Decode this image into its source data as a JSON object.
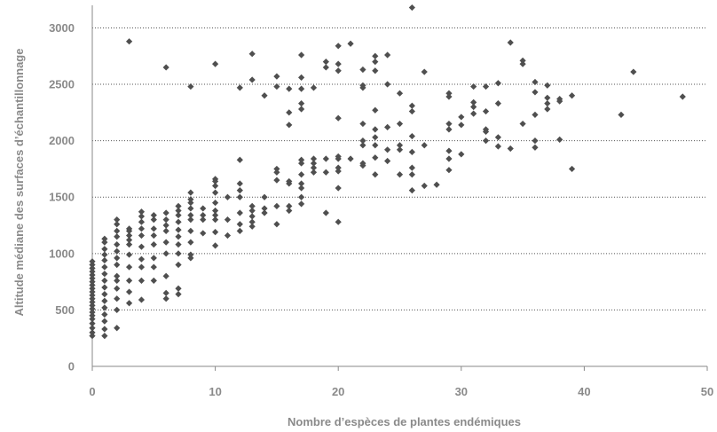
{
  "chart_data": {
    "type": "scatter",
    "xlabel": "Nombre d’espèces de plantes endémiques",
    "ylabel": "Altitude médiane des surfaces d’échantillonnage",
    "xlim": [
      0,
      50
    ],
    "ylim": [
      0,
      3200
    ],
    "xticks": [
      0,
      10,
      20,
      30,
      40,
      50
    ],
    "yticks": [
      0,
      500,
      1000,
      1500,
      2000,
      2500,
      3000
    ],
    "grid": "horizontal dotted",
    "marker_color": "#4f4f4f",
    "points": [
      [
        0,
        270
      ],
      [
        0,
        300
      ],
      [
        0,
        340
      ],
      [
        0,
        380
      ],
      [
        0,
        420
      ],
      [
        0,
        450
      ],
      [
        0,
        480
      ],
      [
        0,
        510
      ],
      [
        0,
        540
      ],
      [
        0,
        570
      ],
      [
        0,
        600
      ],
      [
        0,
        630
      ],
      [
        0,
        660
      ],
      [
        0,
        690
      ],
      [
        0,
        720
      ],
      [
        0,
        750
      ],
      [
        0,
        780
      ],
      [
        0,
        810
      ],
      [
        0,
        840
      ],
      [
        0,
        870
      ],
      [
        0,
        900
      ],
      [
        0,
        930
      ],
      [
        1,
        270
      ],
      [
        1,
        330
      ],
      [
        1,
        400
      ],
      [
        1,
        460
      ],
      [
        1,
        520
      ],
      [
        1,
        580
      ],
      [
        1,
        640
      ],
      [
        1,
        700
      ],
      [
        1,
        760
      ],
      [
        1,
        820
      ],
      [
        1,
        880
      ],
      [
        1,
        940
      ],
      [
        1,
        990
      ],
      [
        1,
        1040
      ],
      [
        1,
        1100
      ],
      [
        1,
        1130
      ],
      [
        2,
        340
      ],
      [
        2,
        500
      ],
      [
        2,
        600
      ],
      [
        2,
        690
      ],
      [
        2,
        760
      ],
      [
        2,
        800
      ],
      [
        2,
        900
      ],
      [
        2,
        960
      ],
      [
        2,
        1020
      ],
      [
        2,
        1080
      ],
      [
        2,
        1150
      ],
      [
        2,
        1200
      ],
      [
        2,
        1260
      ],
      [
        2,
        1300
      ],
      [
        3,
        560
      ],
      [
        3,
        660
      ],
      [
        3,
        760
      ],
      [
        3,
        880
      ],
      [
        3,
        990
      ],
      [
        3,
        1080
      ],
      [
        3,
        1120
      ],
      [
        3,
        1160
      ],
      [
        3,
        1200
      ],
      [
        3,
        1220
      ],
      [
        3,
        2880
      ],
      [
        4,
        590
      ],
      [
        4,
        760
      ],
      [
        4,
        880
      ],
      [
        4,
        950
      ],
      [
        4,
        1060
      ],
      [
        4,
        1160
      ],
      [
        4,
        1220
      ],
      [
        4,
        1280
      ],
      [
        4,
        1330
      ],
      [
        4,
        1370
      ],
      [
        5,
        760
      ],
      [
        5,
        880
      ],
      [
        5,
        960
      ],
      [
        5,
        1080
      ],
      [
        5,
        1160
      ],
      [
        5,
        1220
      ],
      [
        5,
        1300
      ],
      [
        5,
        1340
      ],
      [
        6,
        600
      ],
      [
        6,
        650
      ],
      [
        6,
        800
      ],
      [
        6,
        1000
      ],
      [
        6,
        1100
      ],
      [
        6,
        1200
      ],
      [
        6,
        1250
      ],
      [
        6,
        1300
      ],
      [
        6,
        1360
      ],
      [
        6,
        2650
      ],
      [
        7,
        640
      ],
      [
        7,
        690
      ],
      [
        7,
        900
      ],
      [
        7,
        1000
      ],
      [
        7,
        1080
      ],
      [
        7,
        1150
      ],
      [
        7,
        1210
      ],
      [
        7,
        1280
      ],
      [
        7,
        1340
      ],
      [
        7,
        1380
      ],
      [
        7,
        1420
      ],
      [
        8,
        960
      ],
      [
        8,
        990
      ],
      [
        8,
        1100
      ],
      [
        8,
        1200
      ],
      [
        8,
        1300
      ],
      [
        8,
        1340
      ],
      [
        8,
        1400
      ],
      [
        8,
        1450
      ],
      [
        8,
        1480
      ],
      [
        8,
        1540
      ],
      [
        8,
        2480
      ],
      [
        9,
        1180
      ],
      [
        9,
        1300
      ],
      [
        9,
        1340
      ],
      [
        9,
        1400
      ],
      [
        10,
        1070
      ],
      [
        10,
        1190
      ],
      [
        10,
        1300
      ],
      [
        10,
        1340
      ],
      [
        10,
        1380
      ],
      [
        10,
        1450
      ],
      [
        10,
        1540
      ],
      [
        10,
        1600
      ],
      [
        10,
        1640
      ],
      [
        10,
        1660
      ],
      [
        10,
        2680
      ],
      [
        11,
        1160
      ],
      [
        11,
        1300
      ],
      [
        11,
        1500
      ],
      [
        12,
        1200
      ],
      [
        12,
        1260
      ],
      [
        12,
        1360
      ],
      [
        12,
        1500
      ],
      [
        12,
        1560
      ],
      [
        12,
        1620
      ],
      [
        12,
        1830
      ],
      [
        12,
        2470
      ],
      [
        13,
        1240
      ],
      [
        13,
        1280
      ],
      [
        13,
        1330
      ],
      [
        13,
        1380
      ],
      [
        13,
        1420
      ],
      [
        13,
        2540
      ],
      [
        13,
        2770
      ],
      [
        14,
        1360
      ],
      [
        14,
        1400
      ],
      [
        14,
        1500
      ],
      [
        14,
        2400
      ],
      [
        15,
        1260
      ],
      [
        15,
        1420
      ],
      [
        15,
        1650
      ],
      [
        15,
        1720
      ],
      [
        15,
        1750
      ],
      [
        15,
        2480
      ],
      [
        15,
        2570
      ],
      [
        16,
        1380
      ],
      [
        16,
        1420
      ],
      [
        16,
        1620
      ],
      [
        16,
        1640
      ],
      [
        16,
        2140
      ],
      [
        16,
        2250
      ],
      [
        16,
        2460
      ],
      [
        17,
        1440
      ],
      [
        17,
        1500
      ],
      [
        17,
        1580
      ],
      [
        17,
        1620
      ],
      [
        17,
        1700
      ],
      [
        17,
        1800
      ],
      [
        17,
        1830
      ],
      [
        17,
        2280
      ],
      [
        17,
        2330
      ],
      [
        17,
        2460
      ],
      [
        17,
        2560
      ],
      [
        17,
        2760
      ],
      [
        18,
        1720
      ],
      [
        18,
        1760
      ],
      [
        18,
        1800
      ],
      [
        18,
        1840
      ],
      [
        18,
        2470
      ],
      [
        19,
        1360
      ],
      [
        19,
        1720
      ],
      [
        19,
        1840
      ],
      [
        19,
        2650
      ],
      [
        19,
        2700
      ],
      [
        20,
        1280
      ],
      [
        20,
        1580
      ],
      [
        20,
        1730
      ],
      [
        20,
        1760
      ],
      [
        20,
        1840
      ],
      [
        20,
        1860
      ],
      [
        20,
        2200
      ],
      [
        20,
        2620
      ],
      [
        20,
        2680
      ],
      [
        20,
        2840
      ],
      [
        21,
        1840
      ],
      [
        21,
        2860
      ],
      [
        22,
        1780
      ],
      [
        22,
        1800
      ],
      [
        22,
        1960
      ],
      [
        22,
        2000
      ],
      [
        22,
        2150
      ],
      [
        22,
        2470
      ],
      [
        22,
        2490
      ],
      [
        22,
        2630
      ],
      [
        23,
        1700
      ],
      [
        23,
        1850
      ],
      [
        23,
        1960
      ],
      [
        23,
        2030
      ],
      [
        23,
        2100
      ],
      [
        23,
        2270
      ],
      [
        23,
        2620
      ],
      [
        23,
        2700
      ],
      [
        23,
        2750
      ],
      [
        24,
        1820
      ],
      [
        24,
        1920
      ],
      [
        24,
        2120
      ],
      [
        24,
        2500
      ],
      [
        24,
        2760
      ],
      [
        25,
        1700
      ],
      [
        25,
        1920
      ],
      [
        25,
        1960
      ],
      [
        25,
        2150
      ],
      [
        25,
        2420
      ],
      [
        26,
        1560
      ],
      [
        26,
        1700
      ],
      [
        26,
        1760
      ],
      [
        26,
        1900
      ],
      [
        26,
        2040
      ],
      [
        26,
        2260
      ],
      [
        26,
        2310
      ],
      [
        26,
        3180
      ],
      [
        27,
        1600
      ],
      [
        27,
        1960
      ],
      [
        27,
        2610
      ],
      [
        28,
        1610
      ],
      [
        29,
        1740
      ],
      [
        29,
        1840
      ],
      [
        29,
        1910
      ],
      [
        29,
        2100
      ],
      [
        29,
        2150
      ],
      [
        29,
        2390
      ],
      [
        29,
        2420
      ],
      [
        30,
        1880
      ],
      [
        30,
        2140
      ],
      [
        30,
        2210
      ],
      [
        31,
        2240
      ],
      [
        31,
        2300
      ],
      [
        31,
        2340
      ],
      [
        31,
        2480
      ],
      [
        32,
        2000
      ],
      [
        32,
        2080
      ],
      [
        32,
        2100
      ],
      [
        32,
        2260
      ],
      [
        32,
        2480
      ],
      [
        33,
        1950
      ],
      [
        33,
        2030
      ],
      [
        33,
        2330
      ],
      [
        33,
        2510
      ],
      [
        34,
        1930
      ],
      [
        34,
        2870
      ],
      [
        35,
        2150
      ],
      [
        35,
        2680
      ],
      [
        35,
        2710
      ],
      [
        36,
        1940
      ],
      [
        36,
        2000
      ],
      [
        36,
        2230
      ],
      [
        36,
        2430
      ],
      [
        36,
        2520
      ],
      [
        37,
        2280
      ],
      [
        37,
        2330
      ],
      [
        37,
        2380
      ],
      [
        37,
        2490
      ],
      [
        38,
        2010
      ],
      [
        38,
        2350
      ],
      [
        38,
        2370
      ],
      [
        39,
        1750
      ],
      [
        39,
        2400
      ],
      [
        43,
        2230
      ],
      [
        44,
        2610
      ],
      [
        48,
        2390
      ]
    ]
  }
}
